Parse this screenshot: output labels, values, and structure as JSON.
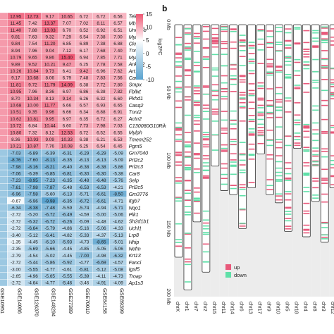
{
  "panel_b_tag": "b",
  "chart_data": [
    {
      "type": "heatmap",
      "columns": [
        "GSE10951",
        "GSE14086",
        "GSE126370",
        "GSE148294",
        "GSE27389",
        "GSE70010",
        "GSE84158",
        "GSE89399"
      ],
      "genes": [
        "Tekt5",
        "Mb",
        "Uno45b",
        "Myl4",
        "Ckm",
        "Tnnt3",
        "Myh8",
        "Ankrd2",
        "Art1",
        "Cav3",
        "Smpx",
        "Fbllxt",
        "Pkhd1",
        "Casq2",
        "Tnni2",
        "Actn2",
        "C130080G10Rik",
        "Mylph",
        "Tmem252",
        "Pgm5",
        "Gm7040",
        "Prl2c2",
        "Prl2c3",
        "Car8",
        "Selp",
        "Prl2c5",
        "Gm3776",
        "Itgb7",
        "Nqo1",
        "Plk1",
        "Sh2d1b1",
        "Uchl1",
        "Lrp8",
        "Hhip",
        "Nefm",
        "Krt13",
        "Fanci",
        "Igsf5",
        "Troap",
        "Ap1s3"
      ],
      "values": [
        [
          "",
          12.95,
          12.73,
          9.17,
          10.65,
          6.72,
          6.72,
          6.56
        ],
        [
          "",
          11.45,
          7.42,
          13.37,
          7.07,
          7.02,
          8.11,
          6.57
        ],
        [
          "",
          11.4,
          7.88,
          13.03,
          6.7,
          6.52,
          6.92,
          6.51
        ],
        [
          "",
          9.81,
          7.63,
          9.32,
          7.29,
          6.54,
          7.38,
          7.0
        ],
        [
          "",
          9.84,
          7.54,
          11.2,
          6.85,
          6.89,
          7.38,
          6.88
        ],
        [
          "",
          8.94,
          7.96,
          9.04,
          7.12,
          6.17,
          7.68,
          7.4
        ],
        [
          "",
          10.79,
          9.65,
          9.86,
          15.4,
          6.94,
          7.85,
          7.71
        ],
        [
          "",
          9.89,
          9.52,
          10.21,
          9.47,
          6.25,
          7.78,
          7.58
        ],
        [
          "",
          10.26,
          10.84,
          9.73,
          6.41,
          9.42,
          6.96,
          7.62
        ],
        [
          "",
          9.17,
          10.68,
          8.06,
          6.79,
          7.48,
          7.83,
          7.56
        ],
        [
          "",
          11.81,
          9.72,
          11.79,
          14.09,
          6.38,
          7.72,
          7.8
        ],
        [
          "",
          10.95,
          7.96,
          8.36,
          6.97,
          6.86,
          6.38,
          7.82
        ],
        [
          "",
          8.7,
          10.34,
          8.13,
          9.14,
          6.26,
          6.32,
          6.6
        ],
        [
          "",
          10.68,
          10.0,
          11.77,
          6.66,
          6.57,
          6.93,
          6.65
        ],
        [
          "",
          10.51,
          9.35,
          9.96,
          6.66,
          6.34,
          6.88,
          6.91
        ],
        [
          "",
          10.62,
          10.81,
          9.95,
          6.97,
          6.35,
          6.72,
          6.27
        ],
        [
          "",
          10.72,
          6.84,
          10.44,
          6.6,
          7.73,
          7.98,
          7.03
        ],
        [
          "",
          10.8,
          7.32,
          8.12,
          12.53,
          6.72,
          6.52,
          6.55
        ],
        [
          "",
          8.36,
          10.93,
          9.09,
          10.33,
          6.38,
          6.21,
          6.53
        ],
        [
          "",
          10.21,
          10.87,
          7.76,
          10.08,
          6.25,
          6.54,
          6.45
        ],
        [
          "",
          -7.03,
          -6.89,
          -6.39,
          -6.31,
          -6.29,
          -6.29,
          -5.09
        ],
        [
          "",
          -8.76,
          -7.6,
          -8.13,
          -6.35,
          -6.13,
          -6.13,
          -5.09
        ],
        [
          "",
          -7.98,
          -8.16,
          -8.21,
          -6.4,
          -6.38,
          -6.38,
          -5.86
        ],
        [
          "",
          -7.06,
          -6.39,
          -6.85,
          -6.81,
          -6.3,
          -6.3,
          -5.38
        ],
        [
          "",
          -7.23,
          -8.95,
          -7.23,
          -6.35,
          -6.48,
          -6.48,
          -5.76
        ],
        [
          "",
          -7.61,
          -7.98,
          -7.87,
          -5.48,
          -6.53,
          -6.53,
          -4.21
        ],
        [
          "",
          -6.96,
          -7.58,
          -5.6,
          -6.13,
          -5.71,
          -6.61,
          -8.5
        ],
        [
          "",
          -0.67,
          -6.96,
          -9.98,
          -6.35,
          -6.72,
          -6.61,
          -4.71
        ],
        [
          "",
          -6.34,
          -8.38,
          -7.48,
          -5.59,
          -5.74,
          -4.94,
          -5.71
        ],
        [
          "",
          -2.72,
          -5.2,
          -6.72,
          -6.49,
          -4.59,
          -5.0,
          -5.06
        ],
        [
          "",
          -2.72,
          -6.32,
          -6.72,
          -6.26,
          -5.09,
          -4.48,
          -4.62
        ],
        [
          "",
          -2.72,
          -6.64,
          -5.79,
          -4.86,
          -5.16,
          -5.06,
          -4.33
        ],
        [
          "",
          -3.4,
          -5.12,
          -6.41,
          -4.82,
          -5.33,
          -4.37,
          -5.13
        ],
        [
          "",
          -1.35,
          -4.45,
          -6.1,
          -5.93,
          -4.73,
          -8.65,
          -5.01
        ],
        [
          "",
          -2.35,
          -5.69,
          -5.66,
          -4.45,
          -4.85,
          -5.05,
          -5.06
        ],
        [
          "",
          -2.79,
          -4.54,
          -5.02,
          -4.45,
          -7.0,
          -4.98,
          -6.32
        ],
        [
          "",
          -2.72,
          -5.44,
          -5.86,
          -5.92,
          -4.77,
          -6.69,
          -4.57
        ],
        [
          "",
          -3.0,
          -5.55,
          -4.77,
          -4.61,
          -5.81,
          -5.12,
          -5.08
        ],
        [
          "",
          -2.65,
          -4.96,
          -5.65,
          -5.55,
          -5.39,
          -4.11,
          -4.73
        ],
        [
          "",
          -2.72,
          -4.64,
          -4.77,
          -5.46,
          -3.46,
          -4.91,
          -4.09
        ]
      ],
      "color_scale": {
        "min": -10,
        "max": 15,
        "low": "#5aa3cf",
        "mid": "#ffffff",
        "high": "#ee5773"
      },
      "legend_ticks": [
        "15",
        "10",
        "5",
        "0",
        "-5",
        "-10"
      ],
      "legend_title": "log2FC"
    },
    {
      "type": "karyogram",
      "ylabel_ticks": [
        "0 Mb",
        "50 Mb",
        "100 Mb",
        "150 Mb",
        "200 Mb"
      ],
      "ylim": [
        0,
        200
      ],
      "chromosomes": [
        {
          "name": "chrX",
          "length": 171
        },
        {
          "name": "chr1",
          "length": 195
        },
        {
          "name": "chr7",
          "length": 145
        },
        {
          "name": "chr2",
          "length": 182
        },
        {
          "name": "chr15",
          "length": 104
        },
        {
          "name": "chr11",
          "length": 122
        },
        {
          "name": "chr14",
          "length": 125
        },
        {
          "name": "chr6",
          "length": 150
        },
        {
          "name": "chr13",
          "length": 120
        },
        {
          "name": "chr17",
          "length": 95
        },
        {
          "name": "chr9",
          "length": 125
        },
        {
          "name": "chr10",
          "length": 131
        },
        {
          "name": "chr5",
          "length": 152
        },
        {
          "name": "chr18",
          "length": 91
        },
        {
          "name": "chr4",
          "length": 156
        },
        {
          "name": "chr8",
          "length": 130
        },
        {
          "name": "chr3",
          "length": 160
        },
        {
          "name": "chr12",
          "length": 120
        }
      ],
      "legend": [
        {
          "name": "up",
          "color": "#e8587a"
        },
        {
          "name": "down",
          "color": "#5fe0a8"
        }
      ]
    }
  ]
}
